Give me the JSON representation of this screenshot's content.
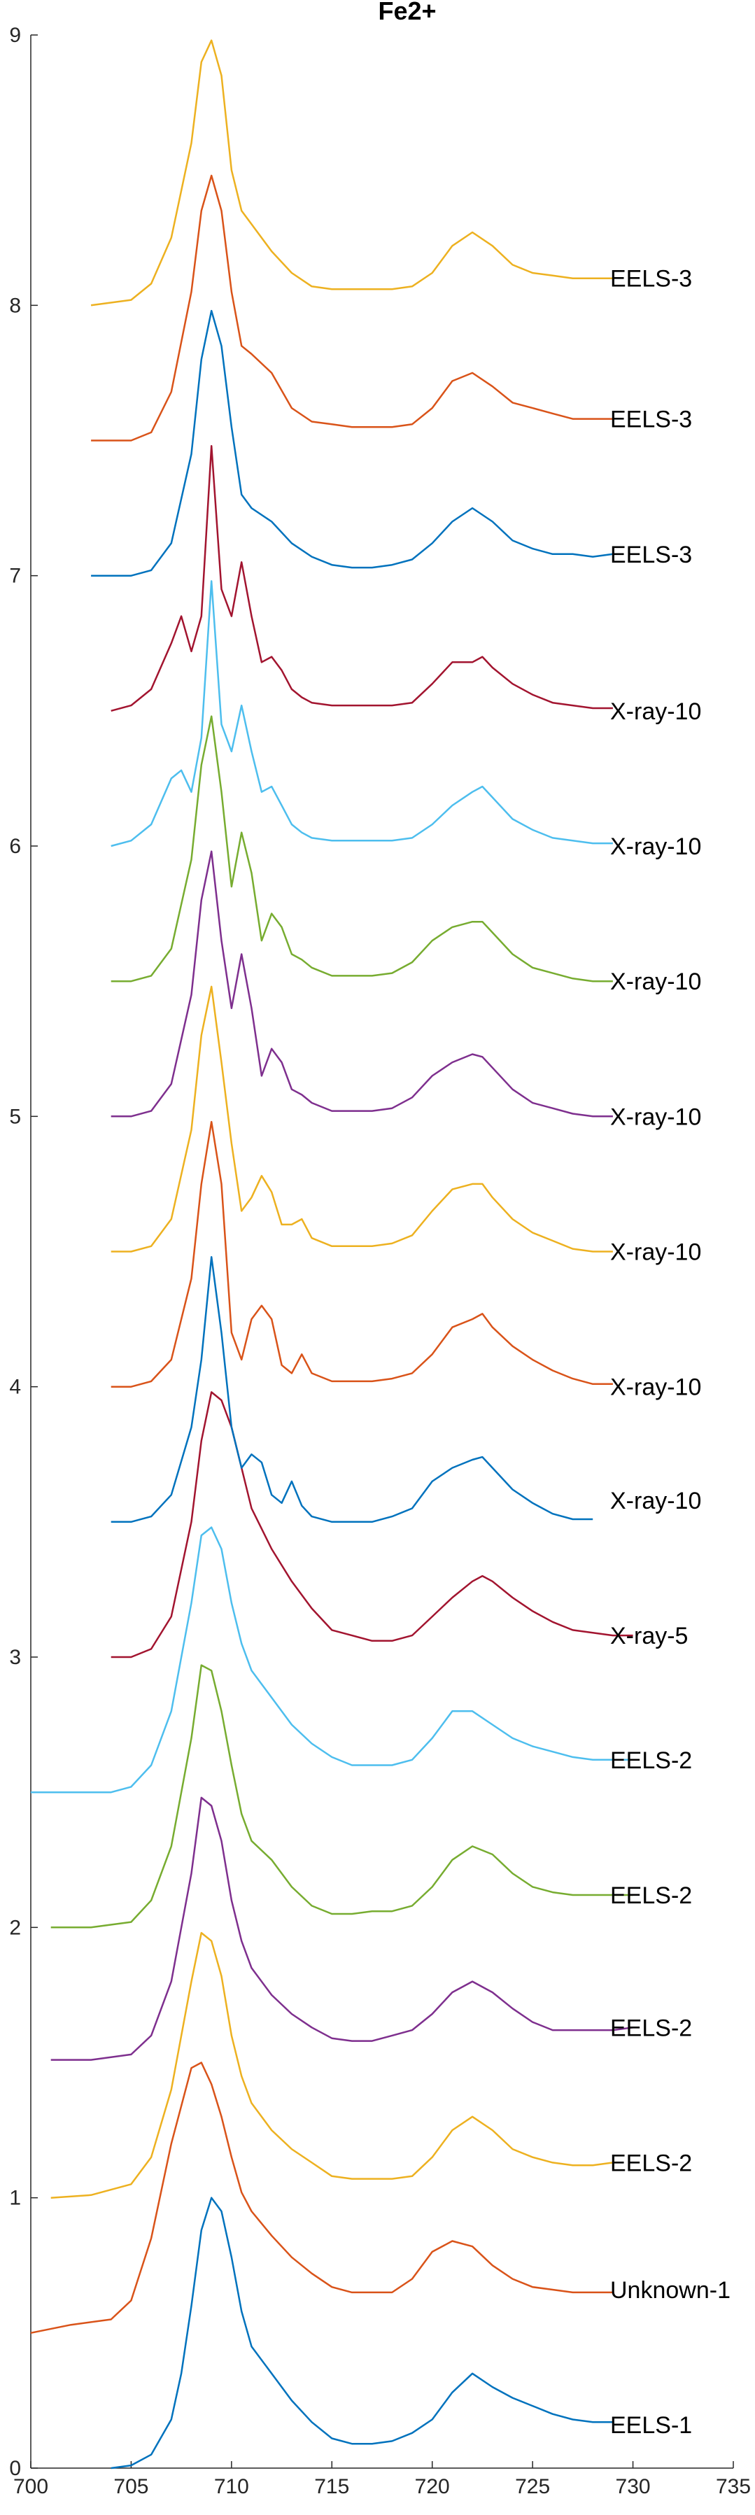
{
  "chart_data": {
    "type": "line",
    "title": "Fe2+",
    "xlabel": "",
    "ylabel": "",
    "xlim": [
      700,
      735
    ],
    "ylim": [
      0,
      9
    ],
    "xticks": [
      "700",
      "705",
      "710",
      "715",
      "720",
      "725",
      "730",
      "735"
    ],
    "yticks": [
      "0",
      "1",
      "2",
      "3",
      "4",
      "5",
      "6",
      "7",
      "8",
      "9"
    ],
    "grid": false,
    "series": [
      {
        "name": "EELS-1",
        "color": "#0072BD",
        "label_y": 0.16,
        "x": [
          704,
          705,
          706,
          707,
          707.5,
          708,
          708.5,
          709,
          709.5,
          710,
          710.5,
          711,
          712,
          713,
          714,
          715,
          716,
          717,
          718,
          719,
          720,
          721,
          722,
          723,
          724,
          725,
          726,
          727,
          728,
          729
        ],
        "y": [
          0,
          0.01,
          0.05,
          0.18,
          0.35,
          0.6,
          0.88,
          1.0,
          0.95,
          0.78,
          0.58,
          0.45,
          0.35,
          0.25,
          0.17,
          0.11,
          0.09,
          0.09,
          0.1,
          0.13,
          0.18,
          0.28,
          0.35,
          0.3,
          0.26,
          0.23,
          0.2,
          0.18,
          0.17,
          0.17
        ]
      },
      {
        "name": "Unknown-1",
        "color": "#D95319",
        "label_y": 0.66,
        "x": [
          700,
          702,
          704,
          705,
          706,
          707,
          708,
          708.5,
          709,
          709.5,
          710,
          710.5,
          711,
          712,
          713,
          714,
          715,
          716,
          717,
          718,
          719,
          720,
          721,
          722,
          723,
          724,
          725,
          726,
          727,
          728,
          729
        ],
        "y": [
          0.5,
          0.53,
          0.55,
          0.62,
          0.85,
          1.2,
          1.48,
          1.5,
          1.42,
          1.3,
          1.15,
          1.02,
          0.95,
          0.86,
          0.78,
          0.72,
          0.67,
          0.65,
          0.65,
          0.65,
          0.7,
          0.8,
          0.84,
          0.82,
          0.75,
          0.7,
          0.67,
          0.66,
          0.65,
          0.65,
          0.65
        ]
      },
      {
        "name": "EELS-2",
        "color": "#EDB120",
        "label_y": 1.13,
        "x": [
          701,
          703,
          705,
          706,
          707,
          708,
          708.5,
          709,
          709.5,
          710,
          710.5,
          711,
          712,
          713,
          714,
          715,
          716,
          717,
          718,
          719,
          720,
          721,
          722,
          723,
          724,
          725,
          726,
          727,
          728,
          729
        ],
        "y": [
          1.0,
          1.01,
          1.05,
          1.15,
          1.4,
          1.8,
          1.98,
          1.95,
          1.82,
          1.6,
          1.45,
          1.35,
          1.25,
          1.18,
          1.13,
          1.08,
          1.07,
          1.07,
          1.07,
          1.08,
          1.15,
          1.25,
          1.3,
          1.25,
          1.18,
          1.15,
          1.13,
          1.12,
          1.12,
          1.13
        ]
      },
      {
        "name": "EELS-2",
        "color": "#7E2F8E",
        "label_y": 1.63,
        "x": [
          701,
          703,
          705,
          706,
          707,
          708,
          708.5,
          709,
          709.5,
          710,
          710.5,
          711,
          712,
          713,
          714,
          715,
          716,
          717,
          718,
          719,
          720,
          721,
          722,
          723,
          724,
          725,
          726,
          727,
          728,
          729,
          730
        ],
        "y": [
          1.51,
          1.51,
          1.53,
          1.6,
          1.8,
          2.2,
          2.48,
          2.45,
          2.32,
          2.1,
          1.95,
          1.85,
          1.75,
          1.68,
          1.63,
          1.59,
          1.58,
          1.58,
          1.6,
          1.62,
          1.68,
          1.76,
          1.8,
          1.76,
          1.7,
          1.65,
          1.62,
          1.62,
          1.62,
          1.62,
          1.63
        ]
      },
      {
        "name": "EELS-2",
        "color": "#77AC30",
        "label_y": 2.12,
        "x": [
          701,
          703,
          705,
          706,
          707,
          708,
          708.5,
          709,
          709.5,
          710,
          710.5,
          711,
          712,
          713,
          714,
          715,
          716,
          717,
          718,
          719,
          720,
          721,
          722,
          723,
          724,
          725,
          726,
          727,
          728,
          729,
          730
        ],
        "y": [
          2.0,
          2.0,
          2.02,
          2.1,
          2.3,
          2.7,
          2.97,
          2.95,
          2.8,
          2.6,
          2.42,
          2.32,
          2.25,
          2.15,
          2.08,
          2.05,
          2.05,
          2.06,
          2.06,
          2.08,
          2.15,
          2.25,
          2.3,
          2.27,
          2.2,
          2.15,
          2.13,
          2.12,
          2.12,
          2.12,
          2.12
        ]
      },
      {
        "name": "EELS-2",
        "color": "#4DBEEE",
        "label_y": 2.62,
        "x": [
          700,
          702,
          704,
          705,
          706,
          707,
          708,
          708.5,
          709,
          709.5,
          710,
          710.5,
          711,
          712,
          713,
          714,
          715,
          716,
          717,
          718,
          719,
          720,
          721,
          722,
          723,
          724,
          725,
          726,
          727,
          728,
          729,
          730
        ],
        "y": [
          2.5,
          2.5,
          2.5,
          2.52,
          2.6,
          2.8,
          3.2,
          3.45,
          3.48,
          3.4,
          3.2,
          3.05,
          2.95,
          2.85,
          2.75,
          2.68,
          2.63,
          2.6,
          2.6,
          2.6,
          2.62,
          2.7,
          2.8,
          2.8,
          2.75,
          2.7,
          2.67,
          2.65,
          2.63,
          2.62,
          2.62,
          2.62
        ]
      },
      {
        "name": "X-ray-5",
        "color": "#A2142F",
        "label_y": 3.08,
        "x": [
          704,
          705,
          706,
          707,
          708,
          708.5,
          709,
          709.5,
          710,
          710.5,
          711,
          712,
          713,
          714,
          715,
          716,
          717,
          718,
          719,
          720,
          721,
          722,
          722.5,
          723,
          724,
          725,
          726,
          727,
          728,
          729,
          730
        ],
        "y": [
          3.0,
          3.0,
          3.03,
          3.15,
          3.5,
          3.8,
          3.98,
          3.95,
          3.85,
          3.7,
          3.55,
          3.4,
          3.28,
          3.18,
          3.1,
          3.08,
          3.06,
          3.06,
          3.08,
          3.15,
          3.22,
          3.28,
          3.3,
          3.28,
          3.22,
          3.17,
          3.13,
          3.1,
          3.09,
          3.08,
          3.08
        ]
      },
      {
        "name": "X-ray-10",
        "color": "#0072BD",
        "label_y": 3.58,
        "x": [
          704,
          705,
          706,
          707,
          708,
          708.5,
          709,
          709.5,
          710,
          710.5,
          711,
          711.5,
          712,
          712.5,
          713,
          713.5,
          714,
          715,
          716,
          717,
          718,
          719,
          720,
          721,
          722,
          722.5,
          723,
          724,
          725,
          726,
          727,
          728
        ],
        "y": [
          3.5,
          3.5,
          3.52,
          3.6,
          3.85,
          4.1,
          4.48,
          4.2,
          3.85,
          3.7,
          3.75,
          3.72,
          3.6,
          3.57,
          3.65,
          3.56,
          3.52,
          3.5,
          3.5,
          3.5,
          3.52,
          3.55,
          3.65,
          3.7,
          3.73,
          3.74,
          3.7,
          3.62,
          3.57,
          3.53,
          3.51,
          3.51
        ]
      },
      {
        "name": "X-ray-10",
        "color": "#D95319",
        "label_y": 4.0,
        "x": [
          704,
          705,
          706,
          707,
          708,
          708.5,
          709,
          709.5,
          710,
          710.5,
          711,
          711.5,
          712,
          712.5,
          713,
          713.5,
          714,
          715,
          716,
          717,
          718,
          719,
          720,
          721,
          722,
          722.5,
          723,
          724,
          725,
          726,
          727,
          728,
          729
        ],
        "y": [
          4.0,
          4.0,
          4.02,
          4.1,
          4.4,
          4.75,
          4.98,
          4.75,
          4.2,
          4.1,
          4.25,
          4.3,
          4.25,
          4.08,
          4.05,
          4.12,
          4.05,
          4.02,
          4.02,
          4.02,
          4.03,
          4.05,
          4.12,
          4.22,
          4.25,
          4.27,
          4.22,
          4.15,
          4.1,
          4.06,
          4.03,
          4.01,
          4.01
        ]
      },
      {
        "name": "X-ray-10",
        "color": "#EDB120",
        "label_y": 4.5,
        "x": [
          704,
          705,
          706,
          707,
          708,
          708.5,
          709,
          709.5,
          710,
          710.5,
          711,
          711.5,
          712,
          712.5,
          713,
          713.5,
          714,
          715,
          716,
          717,
          718,
          719,
          720,
          721,
          722,
          722.5,
          723,
          724,
          725,
          726,
          727,
          728,
          729
        ],
        "y": [
          4.5,
          4.5,
          4.52,
          4.62,
          4.95,
          5.3,
          5.48,
          5.2,
          4.9,
          4.65,
          4.7,
          4.78,
          4.72,
          4.6,
          4.6,
          4.62,
          4.55,
          4.52,
          4.52,
          4.52,
          4.53,
          4.56,
          4.65,
          4.73,
          4.75,
          4.75,
          4.7,
          4.62,
          4.57,
          4.54,
          4.51,
          4.5,
          4.5
        ]
      },
      {
        "name": "X-ray-10",
        "color": "#7E2F8E",
        "label_y": 5.0,
        "x": [
          704,
          705,
          706,
          707,
          708,
          708.5,
          709,
          709.5,
          710,
          710.5,
          711,
          711.5,
          712,
          712.5,
          713,
          713.5,
          714,
          715,
          716,
          717,
          718,
          719,
          720,
          721,
          722,
          722.5,
          723,
          724,
          725,
          726,
          727,
          728,
          729
        ],
        "y": [
          5.0,
          5.0,
          5.02,
          5.12,
          5.45,
          5.8,
          5.98,
          5.65,
          5.4,
          5.6,
          5.4,
          5.15,
          5.25,
          5.2,
          5.1,
          5.08,
          5.05,
          5.02,
          5.02,
          5.02,
          5.03,
          5.07,
          5.15,
          5.2,
          5.23,
          5.22,
          5.18,
          5.1,
          5.05,
          5.03,
          5.01,
          5.0,
          5.0
        ]
      },
      {
        "name": "X-ray-10",
        "color": "#77AC30",
        "label_y": 5.5,
        "x": [
          704,
          705,
          706,
          707,
          708,
          708.5,
          709,
          709.5,
          710,
          710.5,
          711,
          711.5,
          712,
          712.5,
          713,
          713.5,
          714,
          715,
          716,
          717,
          718,
          719,
          720,
          721,
          722,
          722.5,
          723,
          724,
          725,
          726,
          727,
          728,
          729
        ],
        "y": [
          5.5,
          5.5,
          5.52,
          5.62,
          5.95,
          6.3,
          6.48,
          6.2,
          5.85,
          6.05,
          5.9,
          5.65,
          5.75,
          5.7,
          5.6,
          5.58,
          5.55,
          5.52,
          5.52,
          5.52,
          5.53,
          5.57,
          5.65,
          5.7,
          5.72,
          5.72,
          5.68,
          5.6,
          5.55,
          5.53,
          5.51,
          5.5,
          5.5
        ]
      },
      {
        "name": "X-ray-10",
        "color": "#4DBEEE",
        "label_y": 6.0,
        "x": [
          704,
          705,
          706,
          707,
          707.5,
          708,
          708.5,
          709,
          709.5,
          710,
          710.5,
          711,
          711.5,
          712,
          712.5,
          713,
          713.5,
          714,
          715,
          716,
          717,
          718,
          719,
          720,
          721,
          722,
          722.5,
          723,
          724,
          725,
          726,
          727,
          728,
          729
        ],
        "y": [
          6.0,
          6.02,
          6.08,
          6.25,
          6.28,
          6.2,
          6.4,
          6.98,
          6.45,
          6.35,
          6.52,
          6.35,
          6.2,
          6.22,
          6.15,
          6.08,
          6.05,
          6.03,
          6.02,
          6.02,
          6.02,
          6.02,
          6.03,
          6.08,
          6.15,
          6.2,
          6.22,
          6.18,
          6.1,
          6.06,
          6.03,
          6.02,
          6.01,
          6.01
        ]
      },
      {
        "name": "X-ray-10",
        "color": "#A2142F",
        "label_y": 6.5,
        "x": [
          704,
          705,
          706,
          707,
          707.5,
          708,
          708.5,
          709,
          709.5,
          710,
          710.5,
          711,
          711.5,
          712,
          712.5,
          713,
          713.5,
          714,
          715,
          716,
          717,
          718,
          719,
          720,
          721,
          722,
          722.5,
          723,
          724,
          725,
          726,
          727,
          728,
          729
        ],
        "y": [
          6.5,
          6.52,
          6.58,
          6.75,
          6.85,
          6.72,
          6.85,
          7.48,
          6.95,
          6.85,
          7.05,
          6.85,
          6.68,
          6.7,
          6.65,
          6.58,
          6.55,
          6.53,
          6.52,
          6.52,
          6.52,
          6.52,
          6.53,
          6.6,
          6.68,
          6.68,
          6.7,
          6.66,
          6.6,
          6.56,
          6.53,
          6.52,
          6.51,
          6.51
        ]
      },
      {
        "name": "EELS-3",
        "color": "#0072BD",
        "label_y": 7.08,
        "x": [
          703,
          705,
          706,
          707,
          708,
          708.5,
          709,
          709.5,
          710,
          710.5,
          711,
          712,
          713,
          714,
          715,
          716,
          717,
          718,
          719,
          720,
          721,
          722,
          723,
          724,
          725,
          726,
          727,
          728,
          729
        ],
        "y": [
          7.0,
          7.0,
          7.02,
          7.12,
          7.45,
          7.8,
          7.98,
          7.85,
          7.55,
          7.3,
          7.25,
          7.2,
          7.12,
          7.07,
          7.04,
          7.03,
          7.03,
          7.04,
          7.06,
          7.12,
          7.2,
          7.25,
          7.2,
          7.13,
          7.1,
          7.08,
          7.08,
          7.07,
          7.08
        ]
      },
      {
        "name": "EELS-3",
        "color": "#D95319",
        "label_y": 7.58,
        "x": [
          703,
          705,
          706,
          707,
          708,
          708.5,
          709,
          709.5,
          710,
          710.5,
          711,
          712,
          713,
          714,
          715,
          716,
          717,
          718,
          719,
          720,
          721,
          722,
          723,
          724,
          725,
          726,
          727,
          728,
          729
        ],
        "y": [
          7.5,
          7.5,
          7.53,
          7.68,
          8.05,
          8.35,
          8.48,
          8.35,
          8.05,
          7.85,
          7.82,
          7.75,
          7.62,
          7.57,
          7.56,
          7.55,
          7.55,
          7.55,
          7.56,
          7.62,
          7.72,
          7.75,
          7.7,
          7.64,
          7.62,
          7.6,
          7.58,
          7.58,
          7.58
        ]
      },
      {
        "name": "EELS-3",
        "color": "#EDB120",
        "label_y": 8.1,
        "x": [
          703,
          705,
          706,
          707,
          708,
          708.5,
          709,
          709.5,
          710,
          710.5,
          711,
          712,
          713,
          714,
          715,
          716,
          717,
          718,
          719,
          720,
          721,
          722,
          723,
          724,
          725,
          726,
          727,
          728,
          729
        ],
        "y": [
          8.0,
          8.02,
          8.08,
          8.25,
          8.6,
          8.9,
          8.98,
          8.85,
          8.5,
          8.35,
          8.3,
          8.2,
          8.12,
          8.07,
          8.06,
          8.06,
          8.06,
          8.06,
          8.07,
          8.12,
          8.22,
          8.27,
          8.22,
          8.15,
          8.12,
          8.11,
          8.1,
          8.1,
          8.1
        ]
      }
    ]
  }
}
